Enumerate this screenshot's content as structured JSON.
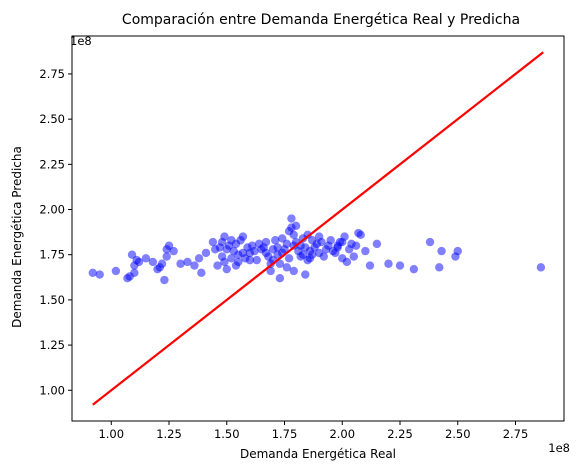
{
  "chart_data": {
    "type": "scatter",
    "title": "Comparación entre Demanda Energética Real y Predicha",
    "xlabel": "Demanda Energética Real",
    "ylabel": "Demanda Energética Predicha",
    "x_offset_label": "1e8",
    "y_offset_label": "1e8",
    "xlim": [
      0.83,
      2.96
    ],
    "ylim": [
      0.83,
      2.96
    ],
    "x_ticks": [
      1.0,
      1.25,
      1.5,
      1.75,
      2.0,
      2.25,
      2.5,
      2.75
    ],
    "x_tick_labels": [
      "1.00",
      "1.25",
      "1.50",
      "1.75",
      "2.00",
      "2.25",
      "2.50",
      "2.75"
    ],
    "y_ticks": [
      1.0,
      1.25,
      1.5,
      1.75,
      2.0,
      2.25,
      2.5,
      2.75
    ],
    "y_tick_labels": [
      "1.00",
      "1.25",
      "1.50",
      "1.75",
      "2.00",
      "2.25",
      "2.50",
      "2.75"
    ],
    "grid": false,
    "reference_line": {
      "x": [
        0.92,
        2.87
      ],
      "y": [
        0.92,
        2.87
      ],
      "color": "#ff0000"
    },
    "series": [
      {
        "color": "#0000ff",
        "x": [
          0.92,
          0.95,
          1.02,
          1.07,
          1.08,
          1.09,
          1.1,
          1.1,
          1.11,
          1.12,
          1.15,
          1.18,
          1.2,
          1.21,
          1.22,
          1.23,
          1.24,
          1.24,
          1.25,
          1.27,
          1.3,
          1.33,
          1.36,
          1.38,
          1.39,
          1.41,
          1.44,
          1.46,
          1.47,
          1.48,
          1.48,
          1.49,
          1.49,
          1.5,
          1.5,
          1.51,
          1.52,
          1.53,
          1.54,
          1.54,
          1.55,
          1.56,
          1.57,
          1.57,
          1.58,
          1.59,
          1.6,
          1.61,
          1.62,
          1.63,
          1.64,
          1.65,
          1.66,
          1.67,
          1.67,
          1.68,
          1.69,
          1.7,
          1.7,
          1.71,
          1.72,
          1.72,
          1.73,
          1.74,
          1.74,
          1.75,
          1.76,
          1.77,
          1.77,
          1.78,
          1.79,
          1.79,
          1.8,
          1.8,
          1.81,
          1.82,
          1.82,
          1.83,
          1.83,
          1.84,
          1.85,
          1.85,
          1.86,
          1.87,
          1.87,
          1.88,
          1.89,
          1.9,
          1.9,
          1.91,
          1.92,
          1.93,
          1.94,
          1.95,
          1.96,
          1.97,
          1.98,
          1.99,
          2.0,
          2.01,
          2.02,
          2.03,
          2.04,
          2.05,
          2.06,
          2.07,
          2.08,
          2.1,
          2.12,
          2.15,
          2.2,
          2.25,
          2.31,
          2.38,
          2.42,
          2.43,
          2.49,
          2.5,
          2.86,
          1.78,
          1.79,
          1.84,
          1.86,
          1.98,
          2.0,
          1.76,
          1.73,
          1.69,
          1.6,
          1.55,
          1.45,
          1.52
        ],
        "y": [
          1.65,
          1.64,
          1.66,
          1.62,
          1.63,
          1.75,
          1.65,
          1.69,
          1.72,
          1.71,
          1.73,
          1.71,
          1.67,
          1.68,
          1.7,
          1.61,
          1.74,
          1.78,
          1.8,
          1.77,
          1.7,
          1.71,
          1.69,
          1.73,
          1.65,
          1.76,
          1.82,
          1.69,
          1.79,
          1.74,
          1.82,
          1.85,
          1.71,
          1.67,
          1.78,
          1.8,
          1.73,
          1.77,
          1.69,
          1.81,
          1.71,
          1.83,
          1.76,
          1.85,
          1.73,
          1.79,
          1.76,
          1.8,
          1.77,
          1.72,
          1.81,
          1.78,
          1.79,
          1.76,
          1.82,
          1.74,
          1.66,
          1.72,
          1.78,
          1.83,
          1.75,
          1.79,
          1.7,
          1.76,
          1.84,
          1.78,
          1.81,
          1.88,
          1.73,
          1.95,
          1.86,
          1.8,
          1.91,
          1.82,
          1.77,
          1.74,
          1.8,
          1.75,
          1.84,
          1.79,
          1.72,
          1.86,
          1.77,
          1.83,
          1.75,
          1.79,
          1.81,
          1.76,
          1.85,
          1.82,
          1.74,
          1.78,
          1.8,
          1.83,
          1.77,
          1.76,
          1.79,
          1.82,
          1.73,
          1.85,
          1.71,
          1.78,
          1.81,
          1.74,
          1.8,
          1.87,
          1.86,
          1.77,
          1.69,
          1.81,
          1.7,
          1.69,
          1.67,
          1.82,
          1.68,
          1.77,
          1.74,
          1.77,
          1.68,
          1.9,
          1.66,
          1.64,
          1.73,
          1.8,
          1.82,
          1.68,
          1.62,
          1.7,
          1.72,
          1.75,
          1.78,
          1.83
        ]
      }
    ]
  }
}
